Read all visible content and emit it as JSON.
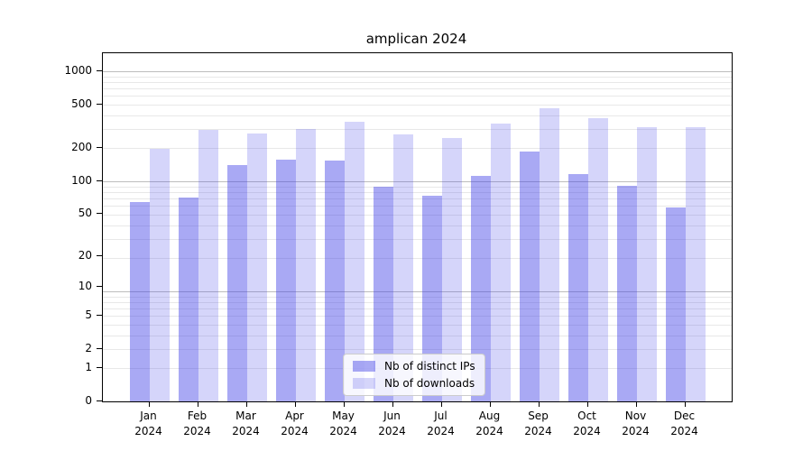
{
  "title": "amplican 2024",
  "chart_data": {
    "type": "bar",
    "title": "amplican 2024",
    "categories": [
      "Jan 2024",
      "Feb 2024",
      "Mar 2024",
      "Apr 2024",
      "May 2024",
      "Jun 2024",
      "Jul 2024",
      "Aug 2024",
      "Sep 2024",
      "Oct 2024",
      "Nov 2024",
      "Dec 2024"
    ],
    "month_names": [
      "Jan",
      "Feb",
      "Mar",
      "Apr",
      "May",
      "Jun",
      "Jul",
      "Aug",
      "Sep",
      "Oct",
      "Nov",
      "Dec"
    ],
    "year": "2024",
    "series": [
      {
        "name": "Nb of distinct IPs",
        "color": "rgba(64,64,231,0.45)",
        "values": [
          64,
          70,
          139,
          156,
          154,
          88,
          73,
          112,
          187,
          116,
          90,
          57
        ]
      },
      {
        "name": "Nb of downloads",
        "color": "rgba(64,64,231,0.22)",
        "values": [
          197,
          293,
          273,
          296,
          345,
          266,
          247,
          332,
          458,
          378,
          310,
          310
        ]
      }
    ],
    "y_scale": "log10(value+1)",
    "y_ticks": [
      0,
      1,
      2,
      5,
      10,
      20,
      50,
      100,
      200,
      500,
      1000
    ],
    "ylim": [
      0,
      1460
    ],
    "xlabel": "",
    "ylabel": "",
    "grid": true,
    "legend_position": "inside-bottom-center"
  },
  "colors": {
    "bar_distinct_ips": "rgba(64,64,231,0.45)",
    "bar_downloads": "rgba(64,64,231,0.22)",
    "grid_minor": "#e8e8e8",
    "grid_major": "#bdbdbd",
    "axis": "#000000",
    "background": "#ffffff",
    "legend_border": "#cccccc"
  }
}
